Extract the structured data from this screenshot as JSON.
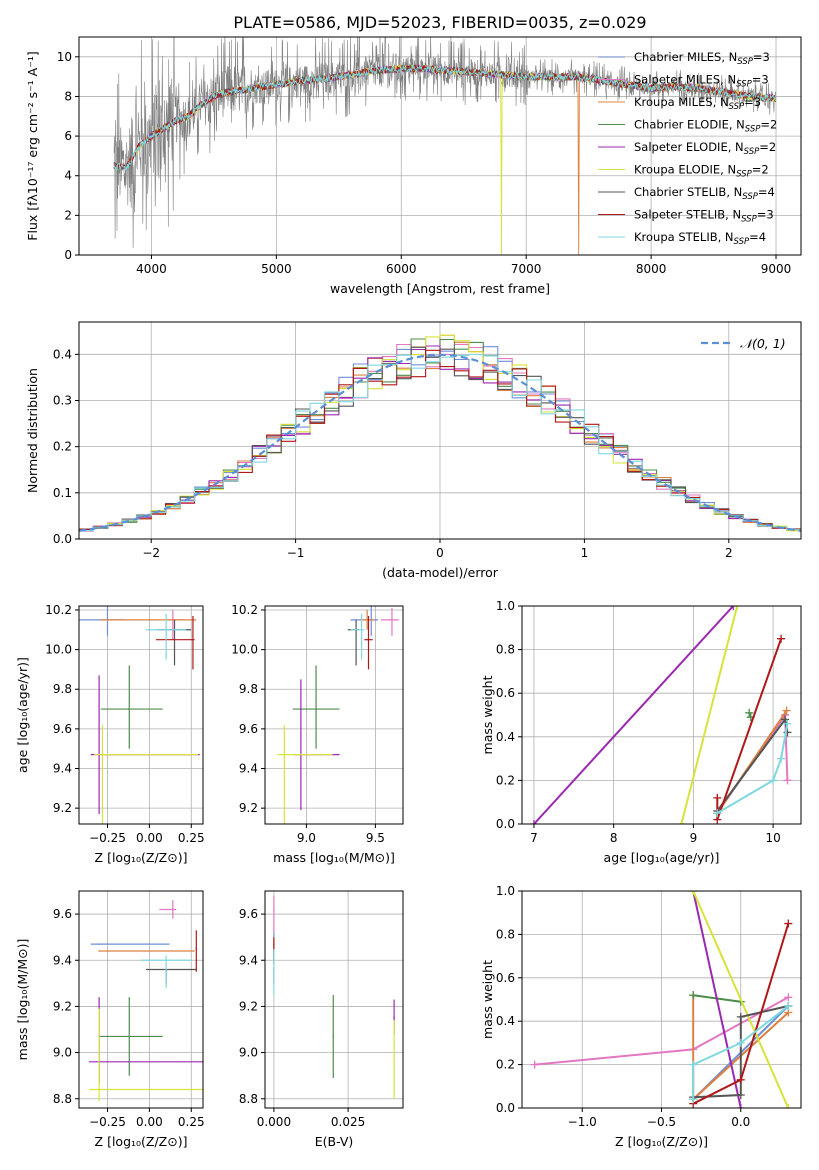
{
  "figure_title": "PLATE=0586, MJD=52023, FIBERID=0035, z=0.029",
  "models": [
    {
      "name": "Chabrier MILES",
      "nssp": "3",
      "color": "#6f8fd6"
    },
    {
      "name": "Salpeter MILES",
      "nssp": "3",
      "color": "#e377c2"
    },
    {
      "name": "Kroupa MILES",
      "nssp": "3",
      "color": "#dd8040"
    },
    {
      "name": "Chabrier ELODIE",
      "nssp": "2",
      "color": "#4d8c4d"
    },
    {
      "name": "Salpeter ELODIE",
      "nssp": "2",
      "color": "#9b28b0"
    },
    {
      "name": "Kroupa ELODIE",
      "nssp": "2",
      "color": "#d7e33a"
    },
    {
      "name": "Chabrier STELIB",
      "nssp": "4",
      "color": "#555555"
    },
    {
      "name": "Salpeter STELIB",
      "nssp": "3",
      "color": "#b01818"
    },
    {
      "name": "Kroupa STELIB",
      "nssp": "4",
      "color": "#7fd8e0"
    }
  ],
  "chart_data": [
    {
      "id": "spectrum",
      "type": "line",
      "xlabel": "wavelength [Angstrom, rest frame]",
      "ylabel": "Flux [fλ10⁻¹⁷ erg cm⁻² s⁻¹ A⁻¹]",
      "xlim": [
        3420,
        9200
      ],
      "ylim": [
        0,
        11
      ],
      "xticks": [
        4000,
        5000,
        6000,
        7000,
        8000,
        9000
      ],
      "yticks": [
        0,
        2,
        4,
        6,
        8,
        10
      ],
      "data_range": [
        3700,
        9000
      ],
      "continuum_points": [
        [
          3700,
          4.5
        ],
        [
          3800,
          4.4
        ],
        [
          3900,
          5.5
        ],
        [
          4000,
          6.0
        ],
        [
          4100,
          6.4
        ],
        [
          4200,
          6.8
        ],
        [
          4300,
          7.0
        ],
        [
          4400,
          7.6
        ],
        [
          4500,
          8.0
        ],
        [
          4600,
          8.2
        ],
        [
          4800,
          8.4
        ],
        [
          5000,
          8.6
        ],
        [
          5200,
          8.8
        ],
        [
          5400,
          8.9
        ],
        [
          5600,
          9.1
        ],
        [
          5800,
          9.3
        ],
        [
          6000,
          9.4
        ],
        [
          6200,
          9.4
        ],
        [
          6400,
          9.3
        ],
        [
          6600,
          9.2
        ],
        [
          6800,
          9.1
        ],
        [
          7000,
          9.0
        ],
        [
          7200,
          9.0
        ],
        [
          7400,
          9.0
        ],
        [
          7600,
          8.8
        ],
        [
          7800,
          8.6
        ],
        [
          8000,
          8.4
        ],
        [
          8200,
          8.5
        ],
        [
          8400,
          8.4
        ],
        [
          8600,
          8.2
        ],
        [
          8800,
          8.0
        ],
        [
          9000,
          7.9
        ]
      ],
      "model_artifacts": [
        {
          "model": "Kroupa ELODIE",
          "x": 6800,
          "y_min": 0
        },
        {
          "model": "Kroupa MILES",
          "x": 7420,
          "y_min": 0
        }
      ]
    },
    {
      "id": "residual_histogram",
      "type": "bar",
      "xlabel": "(data-model)/error",
      "ylabel": "Normed distribution",
      "xlim": [
        -2.5,
        2.5
      ],
      "ylim": [
        0,
        0.47
      ],
      "xticks": [
        -2,
        -1,
        0,
        1,
        2
      ],
      "yticks": [
        0.0,
        0.1,
        0.2,
        0.3,
        0.4
      ],
      "bin_width": 0.1,
      "reference": {
        "name": "𝒩(0, 1)",
        "type": "gaussian",
        "mean": 0,
        "sigma": 1
      }
    },
    {
      "id": "age_vs_Z",
      "type": "scatter",
      "xlabel": "Z [log₁₀(Z/Z⊙)]",
      "ylabel": "age  [log₁₀(age/yr)]",
      "xlim": [
        -0.42,
        0.32
      ],
      "ylim": [
        9.12,
        10.22
      ],
      "xticks": [
        -0.25,
        0.0,
        0.25
      ],
      "yticks": [
        9.2,
        9.4,
        9.6,
        9.8,
        10.0,
        10.2
      ],
      "points": [
        {
          "model": "Chabrier MILES",
          "x": -0.25,
          "xerr": [
            0.17,
            0.1
          ],
          "y": 10.15,
          "yerr": [
            0.08,
            0.08
          ]
        },
        {
          "model": "Salpeter MILES",
          "x": 0.14,
          "xerr": [
            0.04,
            0.06
          ],
          "y": 10.15,
          "yerr": [
            0.1,
            0.05
          ]
        },
        {
          "model": "Kroupa MILES",
          "x": -0.27,
          "xerr": [
            0.02,
            0.55
          ],
          "y": 10.15,
          "yerr": [
            0.0,
            0.0
          ]
        },
        {
          "model": "Chabrier ELODIE",
          "x": -0.12,
          "xerr": [
            0.17,
            0.2
          ],
          "y": 9.7,
          "yerr": [
            0.2,
            0.22
          ]
        },
        {
          "model": "Salpeter ELODIE",
          "x": -0.3,
          "xerr": [
            0.05,
            0.6
          ],
          "y": 9.47,
          "yerr": [
            0.3,
            0.4
          ]
        },
        {
          "model": "Kroupa ELODIE",
          "x": -0.28,
          "xerr": [
            0.05,
            0.57
          ],
          "y": 9.47,
          "yerr": [
            0.38,
            0.15
          ]
        },
        {
          "model": "Chabrier STELIB",
          "x": 0.15,
          "xerr": [
            0.1,
            0.1
          ],
          "y": 10.1,
          "yerr": [
            0.18,
            0.05
          ]
        },
        {
          "model": "Salpeter STELIB",
          "x": 0.26,
          "xerr": [
            0.22,
            0.01
          ],
          "y": 10.05,
          "yerr": [
            0.15,
            0.12
          ]
        },
        {
          "model": "Kroupa STELIB",
          "x": 0.1,
          "xerr": [
            0.12,
            0.12
          ],
          "y": 10.1,
          "yerr": [
            0.15,
            0.08
          ]
        }
      ]
    },
    {
      "id": "age_vs_mass",
      "type": "scatter",
      "xlabel": "mass [log₁₀(M/M⊙)]",
      "ylabel": "",
      "xlim": [
        8.7,
        9.7
      ],
      "ylim": [
        9.12,
        10.22
      ],
      "xticks": [
        9.0,
        9.5
      ],
      "yticks": [
        9.2,
        9.4,
        9.6,
        9.8,
        10.0,
        10.2
      ],
      "points": [
        {
          "model": "Chabrier MILES",
          "x": 9.47,
          "xerr": [
            0.15,
            0.05
          ],
          "y": 10.15,
          "yerr": [
            0.08,
            0.08
          ]
        },
        {
          "model": "Salpeter MILES",
          "x": 9.62,
          "xerr": [
            0.08,
            0.05
          ],
          "y": 10.15,
          "yerr": [
            0.08,
            0.06
          ]
        },
        {
          "model": "Kroupa MILES",
          "x": 9.44,
          "xerr": [
            0.05,
            0.05
          ],
          "y": 10.15,
          "yerr": [
            0.05,
            0.05
          ]
        },
        {
          "model": "Chabrier ELODIE",
          "x": 9.07,
          "xerr": [
            0.17,
            0.17
          ],
          "y": 9.7,
          "yerr": [
            0.2,
            0.22
          ]
        },
        {
          "model": "Salpeter ELODIE",
          "x": 8.96,
          "xerr": [
            0.05,
            0.28
          ],
          "y": 9.47,
          "yerr": [
            0.28,
            0.38
          ]
        },
        {
          "model": "Kroupa ELODIE",
          "x": 8.84,
          "xerr": [
            0.05,
            0.35
          ],
          "y": 9.47,
          "yerr": [
            0.4,
            0.15
          ]
        },
        {
          "model": "Chabrier STELIB",
          "x": 9.36,
          "xerr": [
            0.06,
            0.02
          ],
          "y": 10.1,
          "yerr": [
            0.18,
            0.05
          ]
        },
        {
          "model": "Salpeter STELIB",
          "x": 9.45,
          "xerr": [
            0.03,
            0.03
          ],
          "y": 10.05,
          "yerr": [
            0.15,
            0.12
          ]
        },
        {
          "model": "Kroupa STELIB",
          "x": 9.4,
          "xerr": [
            0.08,
            0.02
          ],
          "y": 10.1,
          "yerr": [
            0.15,
            0.08
          ]
        }
      ]
    },
    {
      "id": "weight_vs_age",
      "type": "line",
      "xlabel": "age  [log₁₀(age/yr)]",
      "ylabel": "mass weight",
      "xlim": [
        6.85,
        10.35
      ],
      "ylim": [
        0,
        1.0
      ],
      "xticks": [
        7,
        8,
        9,
        10
      ],
      "yticks": [
        0.0,
        0.2,
        0.4,
        0.6,
        0.8,
        1.0
      ],
      "series": [
        {
          "model": "Chabrier MILES",
          "points": [
            [
              9.3,
              0.05
            ],
            [
              10.15,
              0.5
            ]
          ]
        },
        {
          "model": "Salpeter MILES",
          "points": [
            [
              9.3,
              0.05
            ],
            [
              10.15,
              0.5
            ],
            [
              10.18,
              0.2
            ]
          ]
        },
        {
          "model": "Kroupa MILES",
          "points": [
            [
              9.3,
              0.05
            ],
            [
              10.17,
              0.52
            ]
          ]
        },
        {
          "model": "Chabrier ELODIE",
          "points": [
            [
              9.7,
              0.51
            ],
            [
              9.72,
              0.49
            ]
          ]
        },
        {
          "model": "Salpeter ELODIE",
          "points": [
            [
              7.0,
              0.0
            ],
            [
              9.5,
              1.0
            ]
          ]
        },
        {
          "model": "Kroupa ELODIE",
          "points": [
            [
              8.85,
              0.0
            ],
            [
              9.55,
              1.0
            ]
          ]
        },
        {
          "model": "Chabrier STELIB",
          "points": [
            [
              9.3,
              0.06
            ],
            [
              10.15,
              0.48
            ],
            [
              10.18,
              0.42
            ]
          ]
        },
        {
          "model": "Salpeter STELIB",
          "points": [
            [
              9.3,
              0.12
            ],
            [
              9.3,
              0.02
            ],
            [
              10.1,
              0.85
            ]
          ]
        },
        {
          "model": "Kroupa STELIB",
          "points": [
            [
              9.3,
              0.05
            ],
            [
              10.0,
              0.2
            ],
            [
              10.1,
              0.3
            ],
            [
              10.18,
              0.46
            ]
          ]
        }
      ]
    },
    {
      "id": "mass_vs_Z",
      "type": "scatter",
      "xlabel": "Z [log₁₀(Z/Z⊙)]",
      "ylabel": "mass [log₁₀(M/M⊙)]",
      "xlim": [
        -0.42,
        0.32
      ],
      "ylim": [
        8.76,
        9.7
      ],
      "xticks": [
        -0.25,
        0.0,
        0.25
      ],
      "yticks": [
        8.8,
        9.0,
        9.2,
        9.4,
        9.6
      ],
      "points": [
        {
          "model": "Chabrier MILES",
          "x": -0.3,
          "xerr": [
            0.05,
            0.42
          ],
          "y": 9.47,
          "yerr": [
            0.0,
            0.0
          ]
        },
        {
          "model": "Salpeter MILES",
          "x": 0.14,
          "xerr": [
            0.08,
            0.02
          ],
          "y": 9.62,
          "yerr": [
            0.04,
            0.04
          ]
        },
        {
          "model": "Kroupa MILES",
          "x": -0.3,
          "xerr": [
            0.0,
            0.57
          ],
          "y": 9.44,
          "yerr": [
            0.0,
            0.0
          ]
        },
        {
          "model": "Chabrier ELODIE",
          "x": -0.12,
          "xerr": [
            0.18,
            0.2
          ],
          "y": 9.07,
          "yerr": [
            0.17,
            0.17
          ]
        },
        {
          "model": "Salpeter ELODIE",
          "x": -0.3,
          "xerr": [
            0.06,
            0.62
          ],
          "y": 8.96,
          "yerr": [
            0.09,
            0.28
          ]
        },
        {
          "model": "Kroupa ELODIE",
          "x": -0.3,
          "xerr": [
            0.06,
            0.62
          ],
          "y": 8.84,
          "yerr": [
            0.05,
            0.35
          ]
        },
        {
          "model": "Chabrier STELIB",
          "x": 0.1,
          "xerr": [
            0.12,
            0.18
          ],
          "y": 9.36,
          "yerr": [
            0.06,
            0.0
          ]
        },
        {
          "model": "Salpeter STELIB",
          "x": 0.28,
          "xerr": [
            0.0,
            0.0
          ],
          "y": 9.45,
          "yerr": [
            0.1,
            0.08
          ]
        },
        {
          "model": "Kroupa STELIB",
          "x": 0.1,
          "xerr": [
            0.15,
            0.15
          ],
          "y": 9.4,
          "yerr": [
            0.12,
            0.02
          ]
        }
      ]
    },
    {
      "id": "mass_vs_EBV",
      "type": "scatter",
      "xlabel": "E(B-V)",
      "ylabel": "",
      "xlim": [
        -0.003,
        0.0435
      ],
      "ylim": [
        8.76,
        9.7
      ],
      "xticks": [
        0.0,
        0.025
      ],
      "xticklabels": [
        "0.000",
        "0.025"
      ],
      "yticks": [
        8.8,
        9.0,
        9.2,
        9.4,
        9.6
      ],
      "points": [
        {
          "model": "Chabrier MILES",
          "x": 0.0,
          "y": 9.47,
          "yerr": [
            0.05,
            0.05
          ]
        },
        {
          "model": "Salpeter MILES",
          "x": 0.0,
          "y": 9.62,
          "yerr": [
            0.1,
            0.06
          ]
        },
        {
          "model": "Kroupa MILES",
          "x": 0.0,
          "y": 9.44,
          "yerr": [
            0.05,
            0.05
          ]
        },
        {
          "model": "Chabrier ELODIE",
          "x": 0.02,
          "y": 9.07,
          "yerr": [
            0.18,
            0.18
          ]
        },
        {
          "model": "Salpeter ELODIE",
          "x": 0.0405,
          "y": 9.15,
          "yerr": [
            0.07,
            0.08
          ]
        },
        {
          "model": "Kroupa ELODIE",
          "x": 0.0405,
          "y": 8.97,
          "yerr": [
            0.17,
            0.17
          ]
        },
        {
          "model": "Chabrier STELIB",
          "x": 0.0,
          "y": 9.36,
          "yerr": [
            0.06,
            0.0
          ]
        },
        {
          "model": "Salpeter STELIB",
          "x": 0.0,
          "y": 9.45,
          "yerr": [
            0.07,
            0.05
          ]
        },
        {
          "model": "Kroupa STELIB",
          "x": 0.0,
          "y": 9.4,
          "yerr": [
            0.15,
            0.05
          ]
        }
      ]
    },
    {
      "id": "weight_vs_Z",
      "type": "line",
      "xlabel": "Z [log₁₀(Z/Z⊙)]",
      "ylabel": "mass weight",
      "xlim": [
        -1.38,
        0.38
      ],
      "ylim": [
        0,
        1.0
      ],
      "xticks": [
        -1.0,
        -0.5,
        0.0
      ],
      "yticks": [
        0.0,
        0.2,
        0.4,
        0.6,
        0.8,
        1.0
      ],
      "series": [
        {
          "model": "Chabrier MILES",
          "points": [
            [
              -0.3,
              0.04
            ],
            [
              0.3,
              0.47
            ]
          ]
        },
        {
          "model": "Salpeter MILES",
          "points": [
            [
              -1.3,
              0.2
            ],
            [
              -0.3,
              0.27
            ],
            [
              0.3,
              0.51
            ]
          ]
        },
        {
          "model": "Kroupa MILES",
          "points": [
            [
              -0.3,
              0.52
            ],
            [
              -0.3,
              0.04
            ],
            [
              0.3,
              0.44
            ]
          ]
        },
        {
          "model": "Chabrier ELODIE",
          "points": [
            [
              -0.3,
              0.52
            ],
            [
              0.0,
              0.49
            ]
          ]
        },
        {
          "model": "Salpeter ELODIE",
          "points": [
            [
              -0.3,
              1.0
            ],
            [
              0.0,
              0.0
            ]
          ]
        },
        {
          "model": "Kroupa ELODIE",
          "points": [
            [
              -0.3,
              1.0
            ],
            [
              0.3,
              0.0
            ]
          ]
        },
        {
          "model": "Chabrier STELIB",
          "points": [
            [
              -0.3,
              0.05
            ],
            [
              0.0,
              0.06
            ],
            [
              0.0,
              0.42
            ],
            [
              0.3,
              0.47
            ]
          ]
        },
        {
          "model": "Salpeter STELIB",
          "points": [
            [
              -0.3,
              0.02
            ],
            [
              0.0,
              0.13
            ],
            [
              0.3,
              0.85
            ]
          ]
        },
        {
          "model": "Kroupa STELIB",
          "points": [
            [
              -0.3,
              0.04
            ],
            [
              -0.3,
              0.2
            ],
            [
              0.0,
              0.3
            ],
            [
              0.3,
              0.47
            ]
          ]
        }
      ]
    }
  ]
}
